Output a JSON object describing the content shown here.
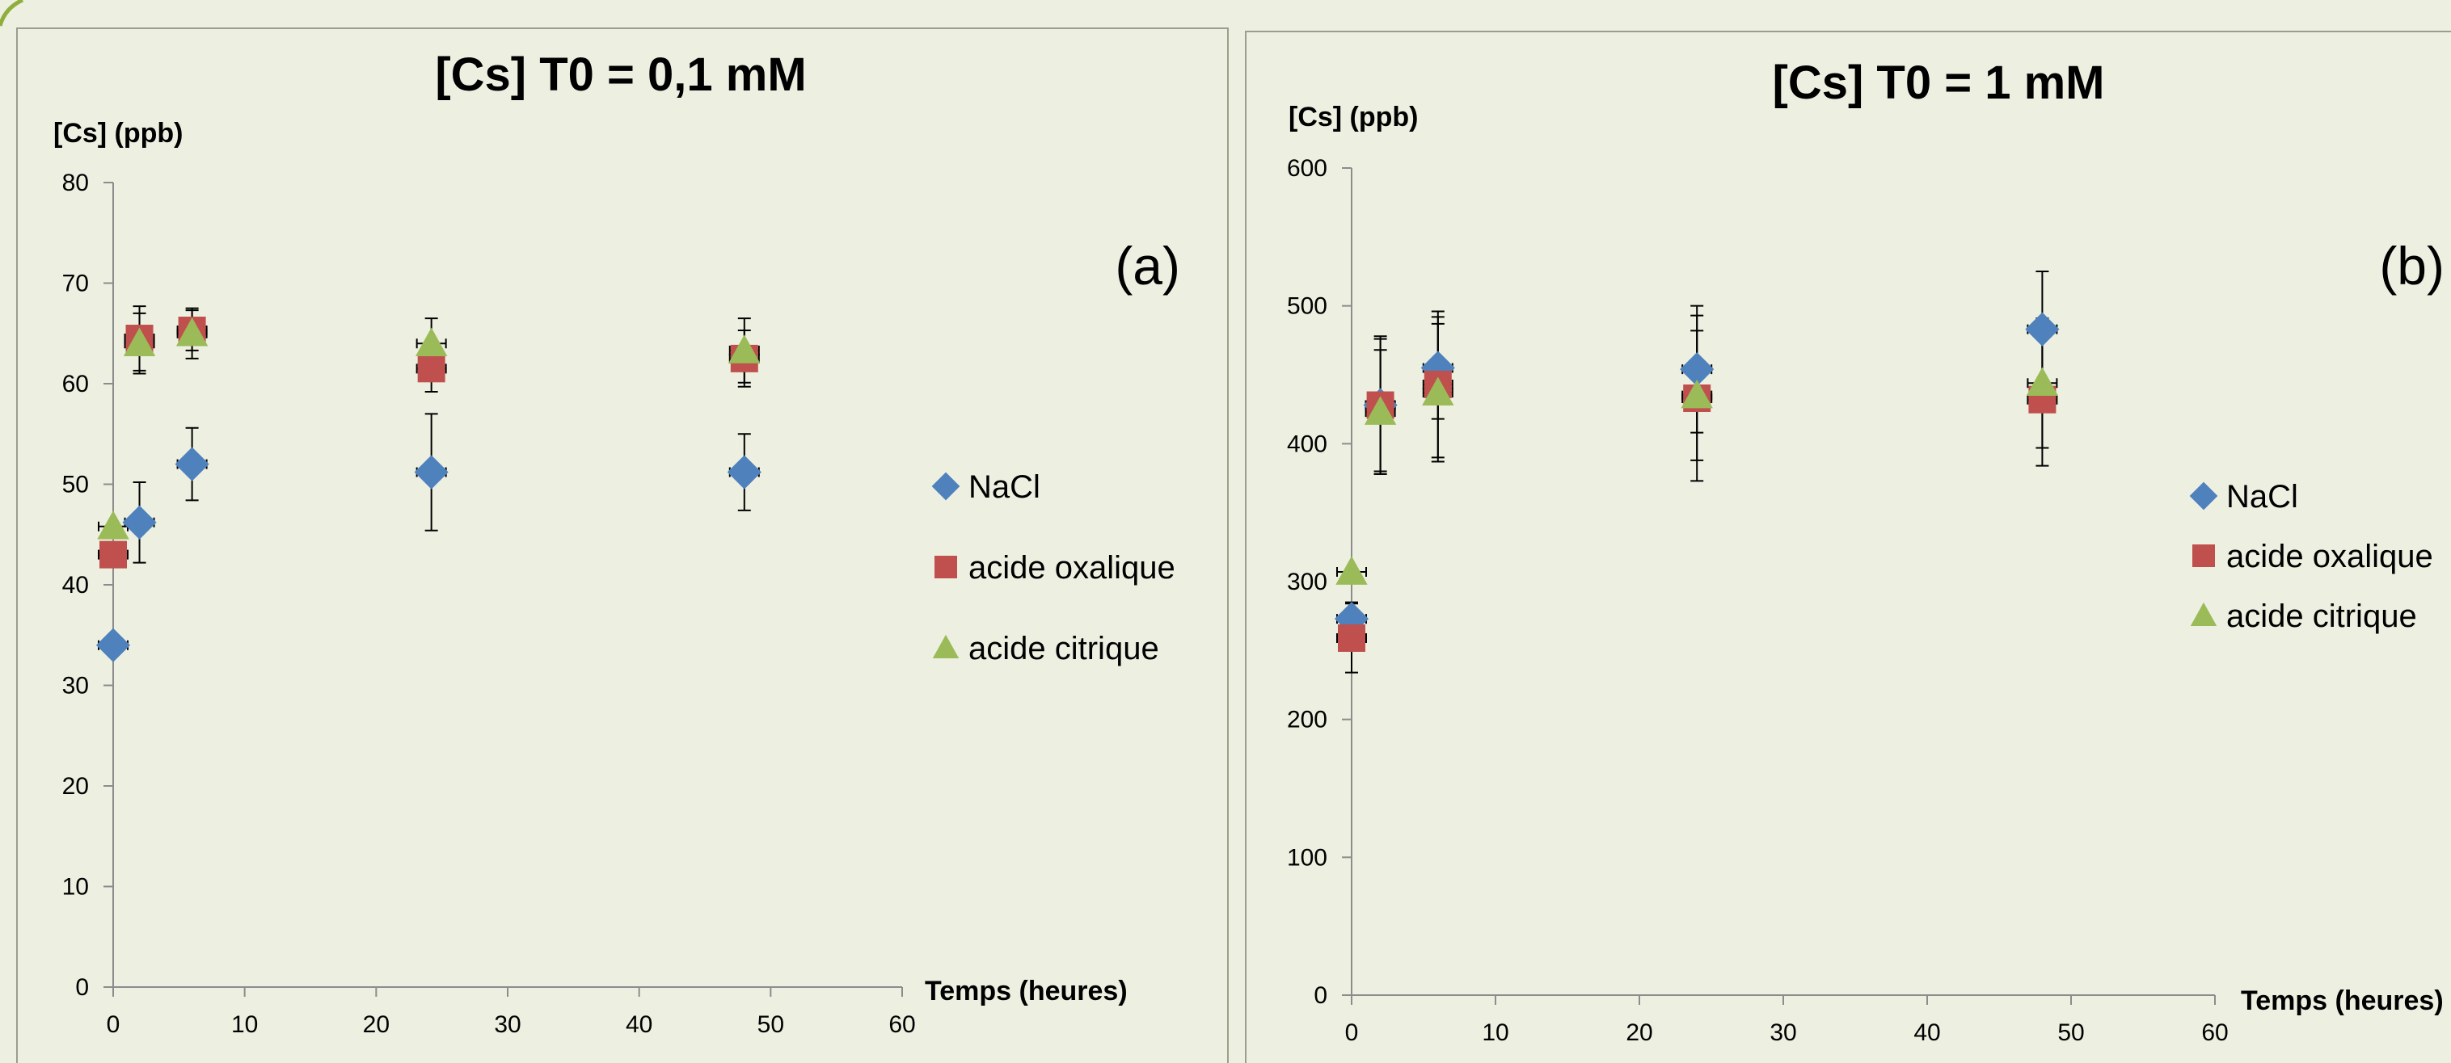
{
  "colors": {
    "background": "#edf0e1",
    "panel_border": "#9a9f8c",
    "axis": "#8c8c8c",
    "text": "#000000",
    "nacl": "#4f81bd",
    "oxalique": "#c0504d",
    "citrique": "#9bbb59"
  },
  "chart_data": [
    {
      "type": "scatter",
      "title": "[Cs] T0 = 0,1 mM",
      "panel_label": "(a)",
      "ylabel": "[Cs] (ppb)",
      "xlabel": "Temps (heures)",
      "xlim": [
        0,
        60
      ],
      "ylim": [
        0,
        80
      ],
      "x_ticks": [
        "0",
        "10",
        "20",
        "30",
        "40",
        "50",
        "60"
      ],
      "y_ticks": [
        "0",
        "10",
        "20",
        "30",
        "40",
        "50",
        "60",
        "70",
        "80"
      ],
      "grid": false,
      "legend_position": "right",
      "series": [
        {
          "name": "NaCl",
          "marker": "diamond",
          "color": "#4f81bd",
          "points": [
            {
              "x": 0,
              "y": 34,
              "yerr": 0
            },
            {
              "x": 2,
              "y": 46.2,
              "yerr": 4
            },
            {
              "x": 6,
              "y": 52,
              "yerr": 3.6
            },
            {
              "x": 24.2,
              "y": 51.2,
              "yerr": 5.8
            },
            {
              "x": 48,
              "y": 51.2,
              "yerr": 3.8
            }
          ]
        },
        {
          "name": "acide oxalique",
          "marker": "square",
          "color": "#c0504d",
          "points": [
            {
              "x": 0,
              "y": 43,
              "yerr": 0
            },
            {
              "x": 2,
              "y": 64.5,
              "yerr": 3.2
            },
            {
              "x": 6,
              "y": 65.3,
              "yerr": 2
            },
            {
              "x": 24.2,
              "y": 61.5,
              "yerr": 2.3
            },
            {
              "x": 48,
              "y": 62.5,
              "yerr": 2.8
            }
          ]
        },
        {
          "name": "acide citrique",
          "marker": "triangle",
          "color": "#9bbb59",
          "points": [
            {
              "x": 0,
              "y": 45.8,
              "yerr": 0
            },
            {
              "x": 2,
              "y": 64,
              "yerr": 3
            },
            {
              "x": 6,
              "y": 65,
              "yerr": 2.5
            },
            {
              "x": 24.2,
              "y": 64,
              "yerr": 2.5
            },
            {
              "x": 48,
              "y": 63.3,
              "yerr": 3.2
            }
          ]
        }
      ]
    },
    {
      "type": "scatter",
      "title": "[Cs] T0 = 1 mM",
      "panel_label": "(b)",
      "ylabel": "[Cs] (ppb)",
      "xlabel": "Temps (heures)",
      "xlim": [
        0,
        60
      ],
      "ylim": [
        0,
        600
      ],
      "x_ticks": [
        "0",
        "10",
        "20",
        "30",
        "40",
        "50",
        "60"
      ],
      "y_ticks": [
        "0",
        "100",
        "200",
        "300",
        "400",
        "500",
        "600"
      ],
      "grid": false,
      "legend_position": "right",
      "series": [
        {
          "name": "NaCl",
          "marker": "diamond",
          "color": "#4f81bd",
          "points": [
            {
              "x": 0,
              "y": 273,
              "yerr": 12
            },
            {
              "x": 2,
              "y": 428,
              "yerr": 48
            },
            {
              "x": 6,
              "y": 455,
              "yerr": 37
            },
            {
              "x": 24,
              "y": 454,
              "yerr": 46
            },
            {
              "x": 48,
              "y": 483,
              "yerr": 42
            }
          ]
        },
        {
          "name": "acide oxalique",
          "marker": "square",
          "color": "#c0504d",
          "points": [
            {
              "x": 0,
              "y": 259,
              "yerr": 25
            },
            {
              "x": 2,
              "y": 428,
              "yerr": 50
            },
            {
              "x": 6,
              "y": 443,
              "yerr": 53
            },
            {
              "x": 24,
              "y": 433,
              "yerr": 60
            },
            {
              "x": 48,
              "y": 432,
              "yerr": 48
            }
          ]
        },
        {
          "name": "acide citrique",
          "marker": "triangle",
          "color": "#9bbb59",
          "points": [
            {
              "x": 0,
              "y": 307,
              "yerr": 0
            },
            {
              "x": 2,
              "y": 423,
              "yerr": 45
            },
            {
              "x": 6,
              "y": 437,
              "yerr": 50
            },
            {
              "x": 24,
              "y": 435,
              "yerr": 47
            },
            {
              "x": 48,
              "y": 444,
              "yerr": 47
            }
          ]
        }
      ]
    }
  ]
}
